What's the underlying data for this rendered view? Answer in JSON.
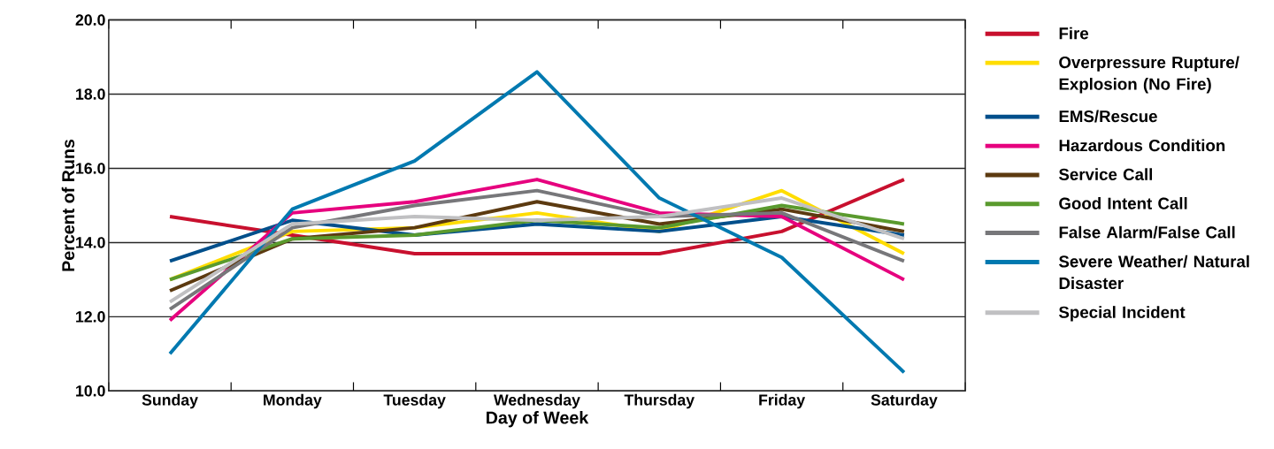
{
  "chart_data": {
    "type": "line",
    "xlabel": "Day of Week",
    "ylabel": "Percent of Runs",
    "categories": [
      "Sunday",
      "Monday",
      "Tuesday",
      "Wednesday",
      "Thursday",
      "Friday",
      "Saturday"
    ],
    "ylim": [
      10,
      20
    ],
    "yticks": [
      {
        "value": 10,
        "label": "10.0"
      },
      {
        "value": 12,
        "label": "12.0"
      },
      {
        "value": 14,
        "label": "14.0"
      },
      {
        "value": 16,
        "label": "16.0"
      },
      {
        "value": 18,
        "label": "18.0"
      },
      {
        "value": 20,
        "label": "20.0"
      }
    ],
    "grid": "y",
    "legend": "right",
    "marker": "none",
    "line_style": "solid",
    "series": [
      {
        "name": "Fire",
        "color": "#c8102e",
        "values": [
          14.7,
          14.2,
          13.7,
          13.7,
          13.7,
          14.3,
          15.7
        ]
      },
      {
        "name": "Overpressure Rupture/ Explosion (No Fire)",
        "color": "#ffdd00",
        "values": [
          13.0,
          14.3,
          14.4,
          14.8,
          14.3,
          15.4,
          13.7
        ]
      },
      {
        "name": "EMS/Rescue",
        "color": "#004f8b",
        "values": [
          13.5,
          14.6,
          14.2,
          14.5,
          14.3,
          14.7,
          14.2
        ]
      },
      {
        "name": "Hazardous Condition",
        "color": "#e6007e",
        "values": [
          11.9,
          14.8,
          15.1,
          15.7,
          14.8,
          14.7,
          13.0
        ]
      },
      {
        "name": "Service Call",
        "color": "#5c3a10",
        "values": [
          12.7,
          14.1,
          14.4,
          15.1,
          14.5,
          14.9,
          14.3
        ]
      },
      {
        "name": "Good Intent Call",
        "color": "#5a9a2e",
        "values": [
          13.0,
          14.1,
          14.2,
          14.6,
          14.4,
          15.0,
          14.5
        ]
      },
      {
        "name": "False Alarm/False Call",
        "color": "#77777a",
        "values": [
          12.2,
          14.4,
          15.0,
          15.4,
          14.7,
          14.8,
          13.5
        ]
      },
      {
        "name": "Severe Weather/ Natural Disaster",
        "color": "#0079b0",
        "values": [
          11.0,
          14.9,
          16.2,
          18.6,
          15.2,
          13.6,
          10.5
        ]
      },
      {
        "name": "Special Incident",
        "color": "#c0c0c2",
        "values": [
          12.4,
          14.5,
          14.7,
          14.6,
          14.7,
          15.2,
          14.1
        ]
      }
    ]
  }
}
